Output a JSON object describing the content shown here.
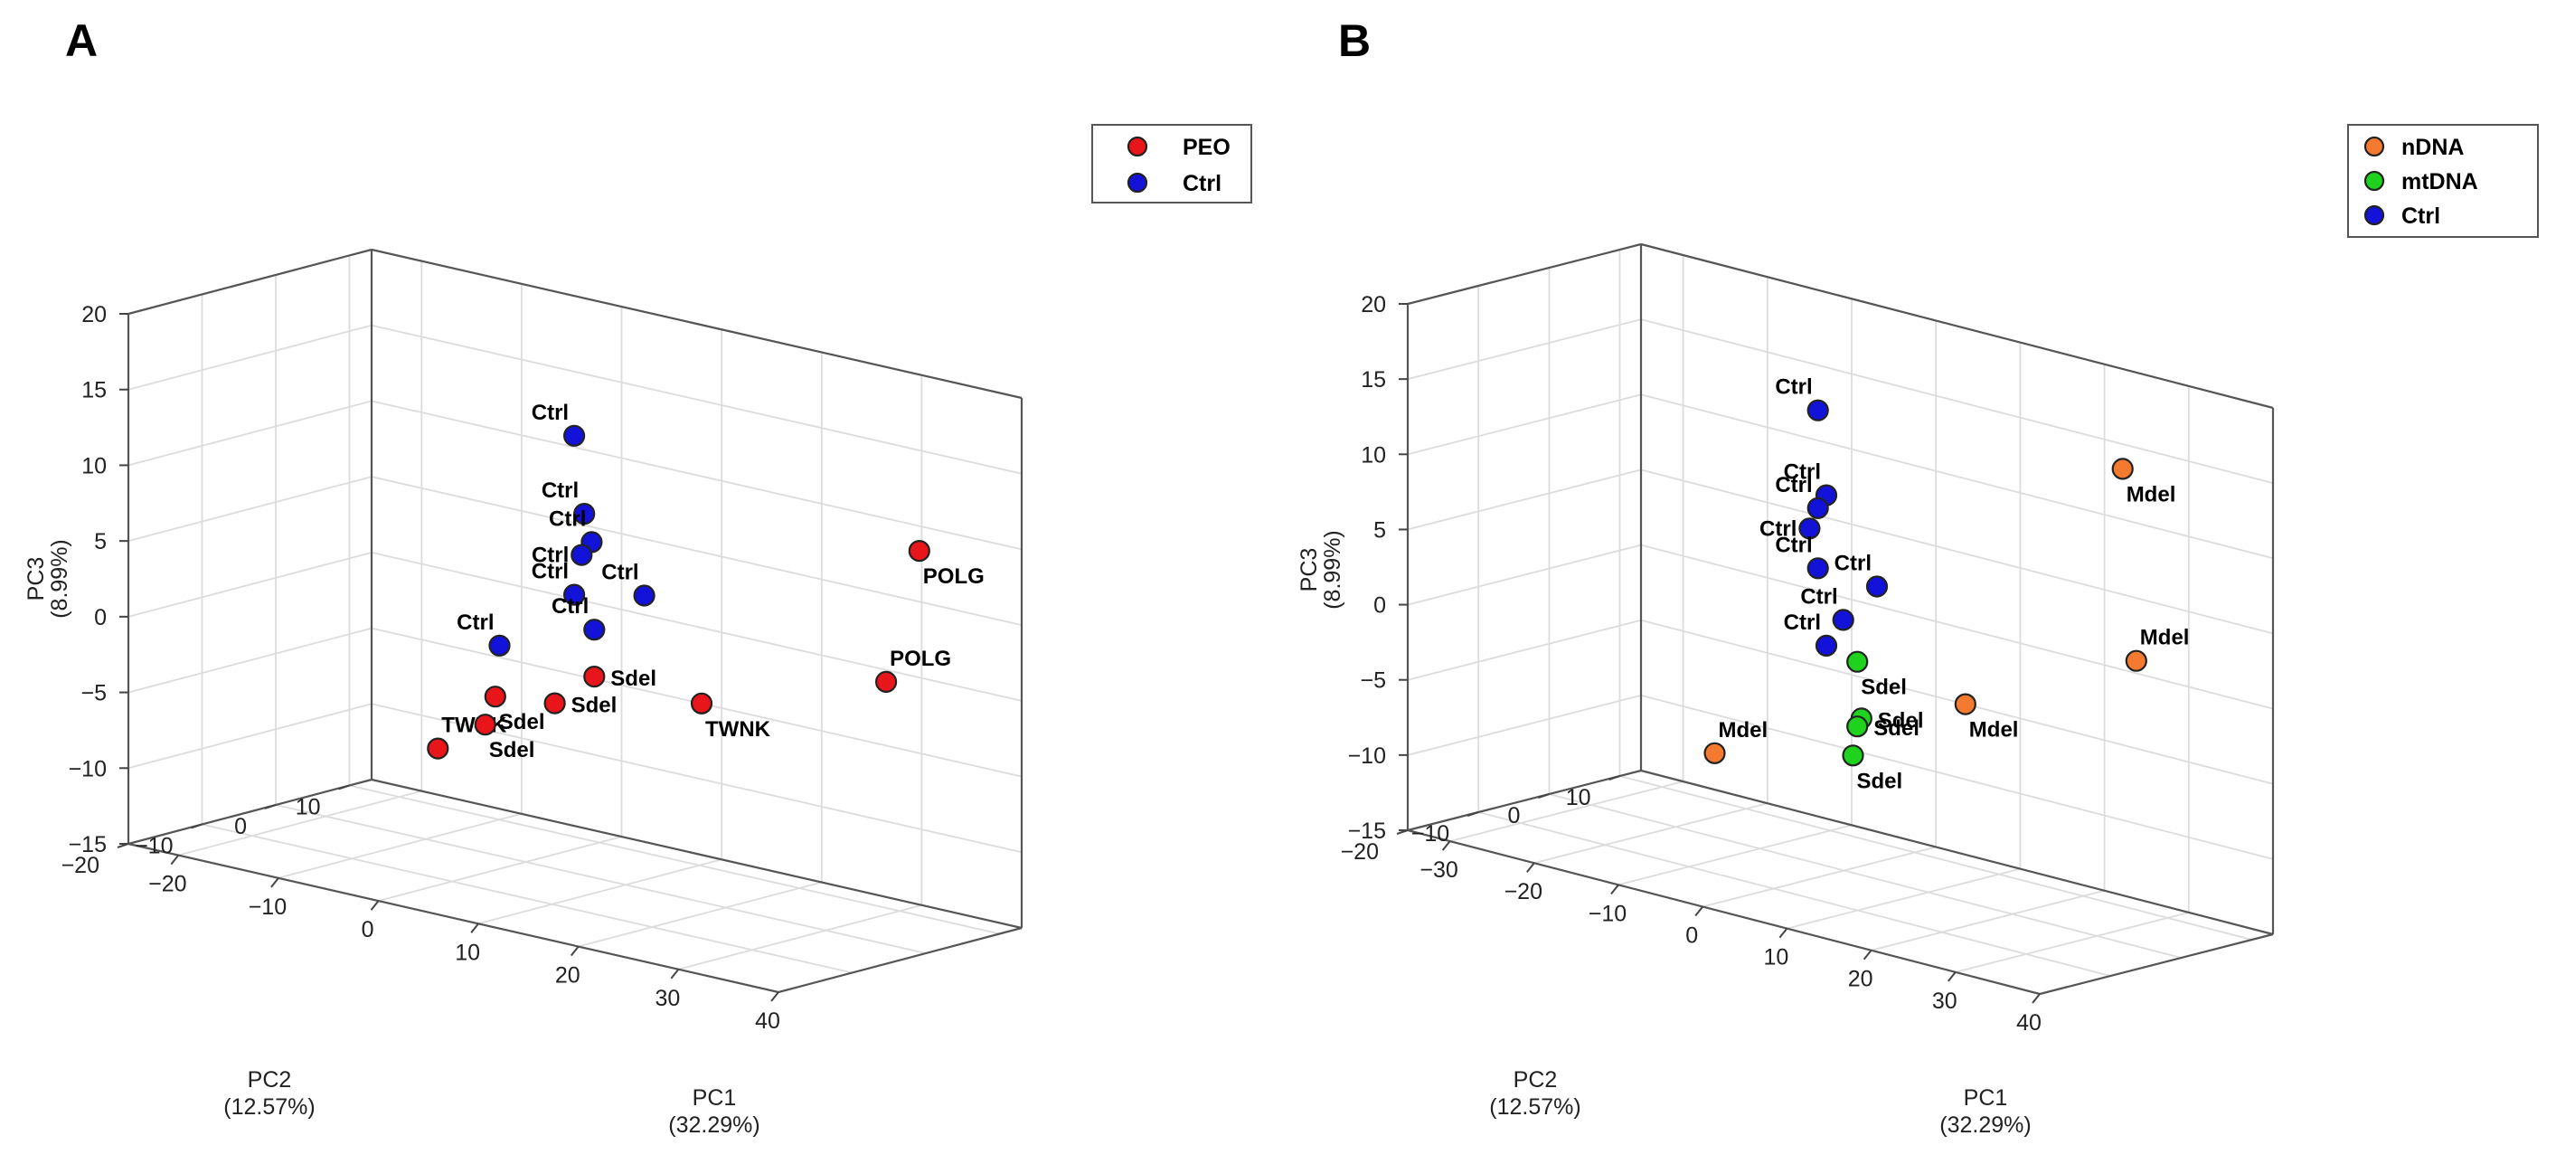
{
  "colors": {
    "PEO": "#e8151a",
    "Ctrl": "#1212d8",
    "nDNA": "#f47a30",
    "mtDNA": "#1ed21e",
    "box": "#555555",
    "grid": "#dcdcdc"
  },
  "chart_data": [
    {
      "type": "scatter",
      "panel_label": "A",
      "title": "",
      "xlabel": "PC1",
      "xlabel_sub": "(32.29%)",
      "ylabel": "PC2",
      "ylabel_sub": "(12.57%)",
      "zlabel": "PC3",
      "zlabel_sub": "(8.99%)",
      "xlim": [
        -25,
        40
      ],
      "ylim": [
        -20,
        13
      ],
      "zlim": [
        -15,
        20
      ],
      "x_ticks": [
        -20,
        -10,
        0,
        10,
        20,
        30,
        40
      ],
      "x_tick_labels": [
        "−20",
        "−10",
        "0",
        "10",
        "20",
        "30",
        "40"
      ],
      "y_ticks": [
        -20,
        -10,
        0,
        10
      ],
      "y_tick_labels": [
        "−20",
        "−10",
        "0",
        "10"
      ],
      "z_ticks": [
        -15,
        -10,
        -5,
        0,
        5,
        10,
        15,
        20
      ],
      "z_tick_labels": [
        "−15",
        "−10",
        "−5",
        "0",
        "5",
        "10",
        "15",
        "20"
      ],
      "legend_position": "top-right",
      "legend": [
        {
          "name": "PEO",
          "color_key": "PEO"
        },
        {
          "name": "Ctrl",
          "color_key": "Ctrl"
        }
      ],
      "points": [
        {
          "group": "PEO",
          "label": "POLG",
          "x": 30.5,
          "y": 12,
          "z": 8.6,
          "label_pos": "below-right"
        },
        {
          "group": "PEO",
          "label": "POLG",
          "x": 37.5,
          "y": -2,
          "z": 2.8,
          "label_pos": "above-right"
        },
        {
          "group": "PEO",
          "label": "TWNK",
          "x": 8,
          "y": 13,
          "z": -5,
          "label_pos": "below-right"
        },
        {
          "group": "PEO",
          "label": "TWNK",
          "x": 3,
          "y": -16,
          "z": -5,
          "label_pos": "above-right"
        },
        {
          "group": "PEO",
          "label": "Sdel",
          "x": -2,
          "y": 12,
          "z": -4.6,
          "label_pos": "right"
        },
        {
          "group": "PEO",
          "label": "Sdel",
          "x": -3,
          "y": 8,
          "z": -6,
          "label_pos": "right"
        },
        {
          "group": "PEO",
          "label": "Sdel",
          "x": -6,
          "y": 4,
          "z": -5.5,
          "label_pos": "below-right"
        },
        {
          "group": "PEO",
          "label": "Sdel",
          "x": -7,
          "y": 4,
          "z": -7.5,
          "label_pos": "below-right"
        },
        {
          "group": "Ctrl",
          "label": "Ctrl",
          "x": -4,
          "y": 12,
          "z": 11,
          "label_pos": "above-left"
        },
        {
          "group": "Ctrl",
          "label": "Ctrl",
          "x": -3,
          "y": 12,
          "z": 6,
          "label_pos": "above-left"
        },
        {
          "group": "Ctrl",
          "label": "Ctrl",
          "x": -3,
          "y": 13,
          "z": 4,
          "label_pos": "above-left"
        },
        {
          "group": "Ctrl",
          "label": "Ctrl",
          "x": -4,
          "y": 13,
          "z": 3,
          "label_pos": "left"
        },
        {
          "group": "Ctrl",
          "label": "Ctrl",
          "x": -4,
          "y": 12,
          "z": 0.5,
          "label_pos": "above-left"
        },
        {
          "group": "Ctrl",
          "label": "Ctrl",
          "x": 3,
          "y": 12,
          "z": 1.5,
          "label_pos": "above-left"
        },
        {
          "group": "Ctrl",
          "label": "Ctrl",
          "x": -2,
          "y": 12,
          "z": -1.5,
          "label_pos": "above-left"
        },
        {
          "group": "Ctrl",
          "label": "Ctrl",
          "x": -10,
          "y": 10,
          "z": -3.5,
          "label_pos": "above-left"
        }
      ]
    },
    {
      "type": "scatter",
      "panel_label": "B",
      "title": "",
      "xlabel": "PC1",
      "xlabel_sub": "(32.29%)",
      "ylabel": "PC2",
      "ylabel_sub": "(12.57%)",
      "zlabel": "PC3",
      "zlabel_sub": "(8.99%)",
      "xlim": [
        -35,
        40
      ],
      "ylim": [
        -20,
        13
      ],
      "zlim": [
        -15,
        20
      ],
      "x_ticks": [
        -30,
        -20,
        -10,
        0,
        10,
        20,
        30,
        40
      ],
      "x_tick_labels": [
        "−30",
        "−20",
        "−10",
        "0",
        "10",
        "20",
        "30",
        "40"
      ],
      "y_ticks": [
        -20,
        -10,
        0,
        10
      ],
      "y_tick_labels": [
        "−20",
        "−10",
        "0",
        "10"
      ],
      "z_ticks": [
        -15,
        -10,
        -5,
        0,
        5,
        10,
        15,
        20
      ],
      "z_tick_labels": [
        "−15",
        "−10",
        "−5",
        "0",
        "5",
        "10",
        "15",
        "20"
      ],
      "legend_position": "top-right",
      "legend": [
        {
          "name": "nDNA",
          "color_key": "nDNA"
        },
        {
          "name": "mtDNA",
          "color_key": "mtDNA"
        },
        {
          "name": "Ctrl",
          "color_key": "Ctrl"
        }
      ],
      "points": [
        {
          "group": "nDNA",
          "label": "Mdel",
          "x": 23,
          "y": 12,
          "z": 13.6,
          "label_pos": "below-right"
        },
        {
          "group": "nDNA",
          "label": "Mdel",
          "x": 37.2,
          "y": -3,
          "z": 4.7,
          "label_pos": "above-right"
        },
        {
          "group": "nDNA",
          "label": "Mdel",
          "x": 3.5,
          "y": 13,
          "z": -5,
          "label_pos": "below-right"
        },
        {
          "group": "nDNA",
          "label": "Mdel",
          "x": 0,
          "y": -18.3,
          "z": -5,
          "label_pos": "above-right"
        },
        {
          "group": "mtDNA",
          "label": "Sdel",
          "x": -8.5,
          "y": 12,
          "z": -3.8,
          "label_pos": "below-right"
        },
        {
          "group": "mtDNA",
          "label": "Sdel",
          "x": -8,
          "y": 12,
          "z": -7.5,
          "label_pos": "right"
        },
        {
          "group": "mtDNA",
          "label": "Sdel",
          "x": -8.5,
          "y": 12,
          "z": -8.1,
          "label_pos": "right"
        },
        {
          "group": "mtDNA",
          "label": "Sdel",
          "x": -9,
          "y": 12,
          "z": -10.1,
          "label_pos": "below-right"
        },
        {
          "group": "Ctrl",
          "label": "Ctrl",
          "x": -14,
          "y": 13,
          "z": 12,
          "label_pos": "above-left"
        },
        {
          "group": "Ctrl",
          "label": "Ctrl",
          "x": -13,
          "y": 13,
          "z": 6.5,
          "label_pos": "above-left"
        },
        {
          "group": "Ctrl",
          "label": "Ctrl",
          "x": -14,
          "y": 13,
          "z": 5.5,
          "label_pos": "above-left"
        },
        {
          "group": "Ctrl",
          "label": "Ctrl",
          "x": -15,
          "y": 13,
          "z": 4,
          "label_pos": "left"
        },
        {
          "group": "Ctrl",
          "label": "Ctrl",
          "x": -14,
          "y": 13,
          "z": 1.5,
          "label_pos": "above-left"
        },
        {
          "group": "Ctrl",
          "label": "Ctrl",
          "x": -7,
          "y": 13,
          "z": 1.3,
          "label_pos": "above-left"
        },
        {
          "group": "Ctrl",
          "label": "Ctrl",
          "x": -11,
          "y": 13,
          "z": -1.5,
          "label_pos": "above-left"
        },
        {
          "group": "Ctrl",
          "label": "Ctrl",
          "x": -13,
          "y": 13,
          "z": -3.5,
          "label_pos": "above-left"
        }
      ]
    }
  ]
}
